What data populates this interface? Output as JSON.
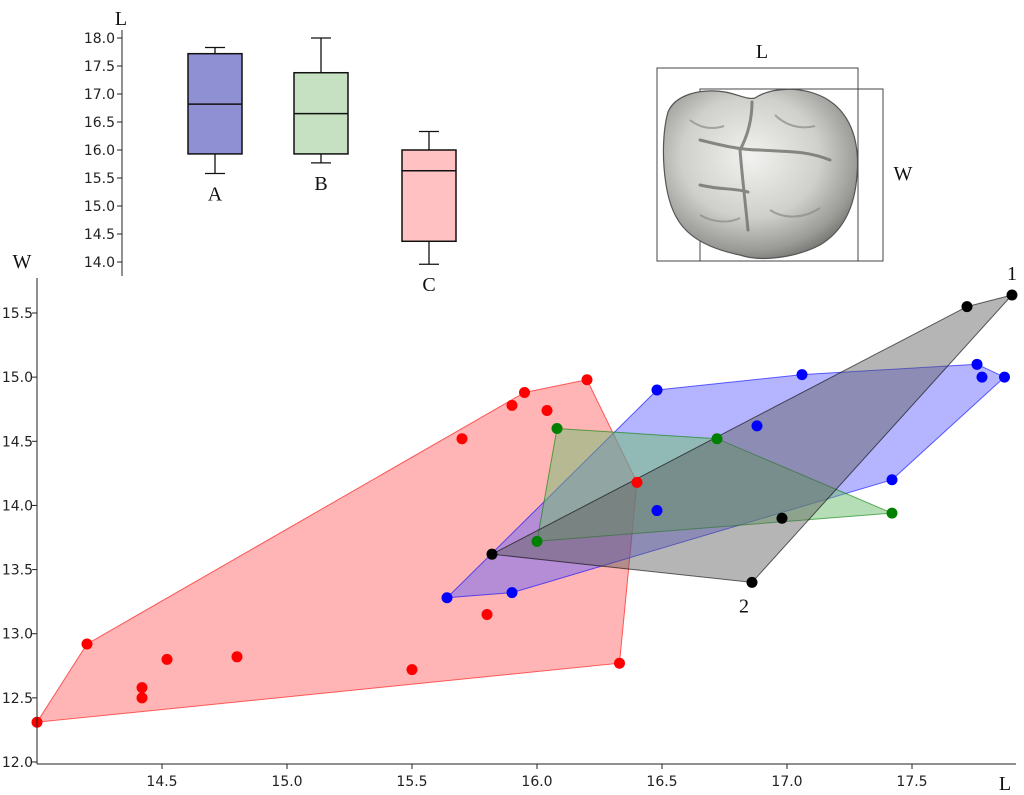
{
  "chart_data": [
    {
      "type": "box",
      "ylabel": "L",
      "ylim": [
        14.0,
        18.0
      ],
      "yticks": [
        "18.0",
        "17.5",
        "17.0",
        "16.5",
        "16.0",
        "15.5",
        "15.0",
        "14.5",
        "14.0"
      ],
      "boxes": [
        {
          "name": "A",
          "color": "#8f90d4",
          "whisker_low": 15.58,
          "q1": 15.93,
          "median": 16.82,
          "q3": 17.72,
          "whisker_high": 17.83
        },
        {
          "name": "B",
          "color": "#c5e1c2",
          "whisker_low": 15.77,
          "q1": 15.93,
          "median": 16.65,
          "q3": 17.38,
          "whisker_high": 18.0
        },
        {
          "name": "C",
          "color": "#ffc1c1",
          "whisker_low": 13.96,
          "q1": 14.37,
          "median": 15.63,
          "q3": 16.0,
          "whisker_high": 16.33
        }
      ]
    },
    {
      "type": "scatter",
      "xlabel": "L",
      "ylabel": "W",
      "xlim": [
        14.0,
        17.9
      ],
      "ylim": [
        12.0,
        15.8
      ],
      "xticks": [
        "14.5",
        "15.0",
        "15.5",
        "16.0",
        "16.5",
        "17.0",
        "17.5"
      ],
      "yticks": [
        "12.0",
        "12.5",
        "13.0",
        "13.5",
        "14.0",
        "14.5",
        "15.0",
        "15.5"
      ],
      "series": [
        {
          "name": "red",
          "color": "#ff0000",
          "fill": "rgba(255,120,120,0.55)",
          "points": [
            [
              14.0,
              12.31
            ],
            [
              14.2,
              12.92
            ],
            [
              14.42,
              12.58
            ],
            [
              14.42,
              12.5
            ],
            [
              14.52,
              12.8
            ],
            [
              14.8,
              12.82
            ],
            [
              15.5,
              12.72
            ],
            [
              15.7,
              14.52
            ],
            [
              15.8,
              13.15
            ],
            [
              15.9,
              14.78
            ],
            [
              15.95,
              14.88
            ],
            [
              16.04,
              14.74
            ],
            [
              16.2,
              14.98
            ],
            [
              16.33,
              12.77
            ],
            [
              16.4,
              14.18
            ]
          ],
          "hull": [
            [
              14.0,
              12.31
            ],
            [
              14.2,
              12.92
            ],
            [
              15.95,
              14.88
            ],
            [
              16.2,
              14.98
            ],
            [
              16.4,
              14.18
            ],
            [
              16.33,
              12.77
            ]
          ]
        },
        {
          "name": "blue",
          "color": "#0000ff",
          "fill": "rgba(90,90,255,0.45)",
          "points": [
            [
              15.64,
              13.28
            ],
            [
              15.9,
              13.32
            ],
            [
              16.48,
              14.9
            ],
            [
              16.48,
              13.96
            ],
            [
              16.88,
              14.62
            ],
            [
              17.06,
              15.02
            ],
            [
              17.42,
              14.2
            ],
            [
              17.76,
              15.1
            ],
            [
              17.78,
              15.0
            ],
            [
              17.87,
              15.0
            ]
          ],
          "hull": [
            [
              15.64,
              13.28
            ],
            [
              15.9,
              13.32
            ],
            [
              17.42,
              14.2
            ],
            [
              17.87,
              15.0
            ],
            [
              17.76,
              15.1
            ],
            [
              17.06,
              15.02
            ],
            [
              16.48,
              14.9
            ]
          ]
        },
        {
          "name": "green",
          "color": "#008000",
          "fill": "rgba(110,190,110,0.5)",
          "points": [
            [
              16.0,
              13.72
            ],
            [
              16.08,
              14.6
            ],
            [
              16.72,
              14.52
            ],
            [
              17.42,
              13.94
            ]
          ],
          "hull": [
            [
              16.0,
              13.72
            ],
            [
              16.08,
              14.6
            ],
            [
              16.72,
              14.52
            ],
            [
              17.42,
              13.94
            ]
          ]
        },
        {
          "name": "black",
          "color": "#000000",
          "fill": "rgba(90,90,90,0.45)",
          "points": [
            [
              15.82,
              13.62
            ],
            [
              16.86,
              13.4
            ],
            [
              16.98,
              13.9
            ],
            [
              17.72,
              15.55
            ],
            [
              17.9,
              15.64
            ]
          ],
          "hull": [
            [
              15.82,
              13.62
            ],
            [
              16.86,
              13.4
            ],
            [
              17.9,
              15.64
            ],
            [
              17.72,
              15.55
            ]
          ]
        }
      ],
      "annotations": [
        {
          "text": "1",
          "point": [
            17.9,
            15.64
          ]
        },
        {
          "text": "2",
          "point": [
            16.86,
            13.4
          ]
        }
      ]
    }
  ],
  "tooth_figure": {
    "length_label": "L",
    "width_label": "W"
  }
}
